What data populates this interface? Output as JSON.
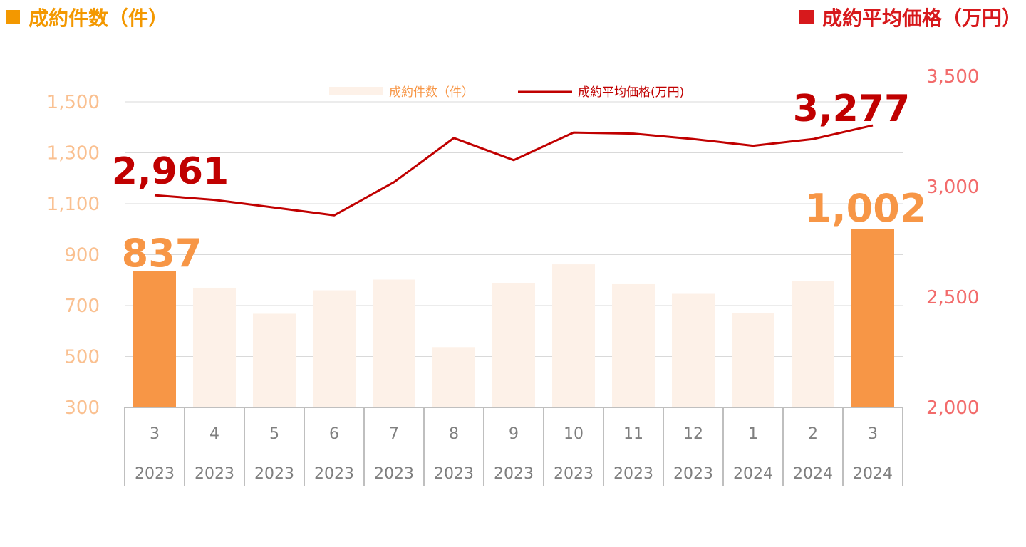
{
  "header": {
    "left_title": "成約件数（件）",
    "left_color": "#f39800",
    "right_title": "成約平均価格（万円）",
    "right_color": "#d7191c"
  },
  "chart_data": {
    "type": "bar+line",
    "categories": [
      {
        "month": "3",
        "year": "2023"
      },
      {
        "month": "4",
        "year": "2023"
      },
      {
        "month": "5",
        "year": "2023"
      },
      {
        "month": "6",
        "year": "2023"
      },
      {
        "month": "7",
        "year": "2023"
      },
      {
        "month": "8",
        "year": "2023"
      },
      {
        "month": "9",
        "year": "2023"
      },
      {
        "month": "10",
        "year": "2023"
      },
      {
        "month": "11",
        "year": "2023"
      },
      {
        "month": "12",
        "year": "2023"
      },
      {
        "month": "1",
        "year": "2024"
      },
      {
        "month": "2",
        "year": "2024"
      },
      {
        "month": "3",
        "year": "2024"
      }
    ],
    "bar_series": {
      "name": "成約件数（件）",
      "values": [
        837,
        770,
        668,
        760,
        802,
        537,
        789,
        862,
        784,
        746,
        672,
        797,
        1002
      ],
      "highlight_indices": [
        0,
        12
      ],
      "color": "#fdf1e8",
      "highlight_color": "#f79646",
      "axis": "left"
    },
    "line_series": {
      "name": "成約平均価格(万円)",
      "values": [
        2961,
        2940,
        2905,
        2870,
        3020,
        3220,
        3120,
        3245,
        3240,
        3215,
        3185,
        3215,
        3277
      ],
      "color": "#c00000",
      "axis": "right"
    },
    "data_labels": {
      "bar_first": "837",
      "bar_last": "1,002",
      "line_first": "2,961",
      "line_last": "3,277",
      "bar_label_color": "#f79646",
      "line_label_color": "#c00000"
    },
    "left_axis": {
      "ylim": [
        300,
        1500
      ],
      "ticks": [
        "300",
        "500",
        "700",
        "900",
        "1,100",
        "1,300",
        "1,500"
      ],
      "tick_values": [
        300,
        500,
        700,
        900,
        1100,
        1300,
        1500
      ],
      "color": "#fac090"
    },
    "right_axis": {
      "ylim": [
        2000,
        3500
      ],
      "ticks": [
        "2,000",
        "2,500",
        "3,000",
        "3,500"
      ],
      "tick_values": [
        2000,
        2500,
        3000,
        3500
      ],
      "color": "#f26b6b"
    },
    "grid": true,
    "legend_placement": "top-center",
    "legend": {
      "bar_label": "成約件数（件）",
      "bar_text_color": "#f79646",
      "line_label": "成約平均価格(万円)",
      "line_text_color": "#c00000"
    }
  }
}
